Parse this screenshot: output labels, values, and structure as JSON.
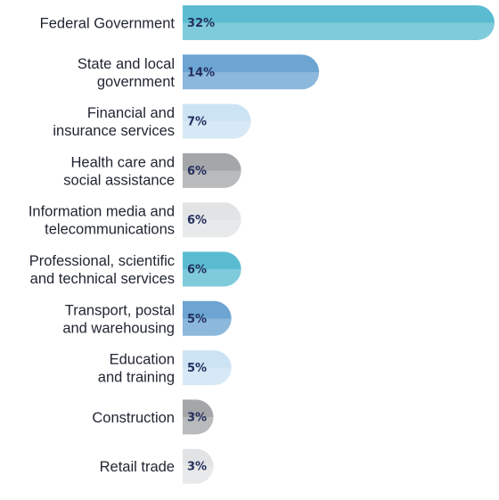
{
  "chart_data": {
    "type": "bar",
    "orientation": "horizontal",
    "categories": [
      "Federal Government",
      "State and local\ngovernment",
      "Financial and\ninsurance services",
      "Health care and\nsocial assistance",
      "Information media and\ntelecommunications",
      "Professional, scientific\nand technical services",
      "Transport, postal\nand warehousing",
      "Education\nand training",
      "Construction",
      "Retail trade"
    ],
    "values": [
      32,
      14,
      7,
      6,
      6,
      6,
      5,
      5,
      3,
      3
    ],
    "value_labels": [
      "32%",
      "14%",
      "7%",
      "6%",
      "6%",
      "6%",
      "5%",
      "5%",
      "3%",
      "3%"
    ],
    "bar_colors": [
      "#5bbcd1",
      "#6ca4d2",
      "#cce3f4",
      "#a5a6a9",
      "#e2e3e4",
      "#5bbcd1",
      "#6ca4d2",
      "#cce3f4",
      "#a5a6a9",
      "#e2e3e4"
    ],
    "title": "",
    "xlabel": "",
    "ylabel": "",
    "grid": false,
    "legend": "none"
  }
}
